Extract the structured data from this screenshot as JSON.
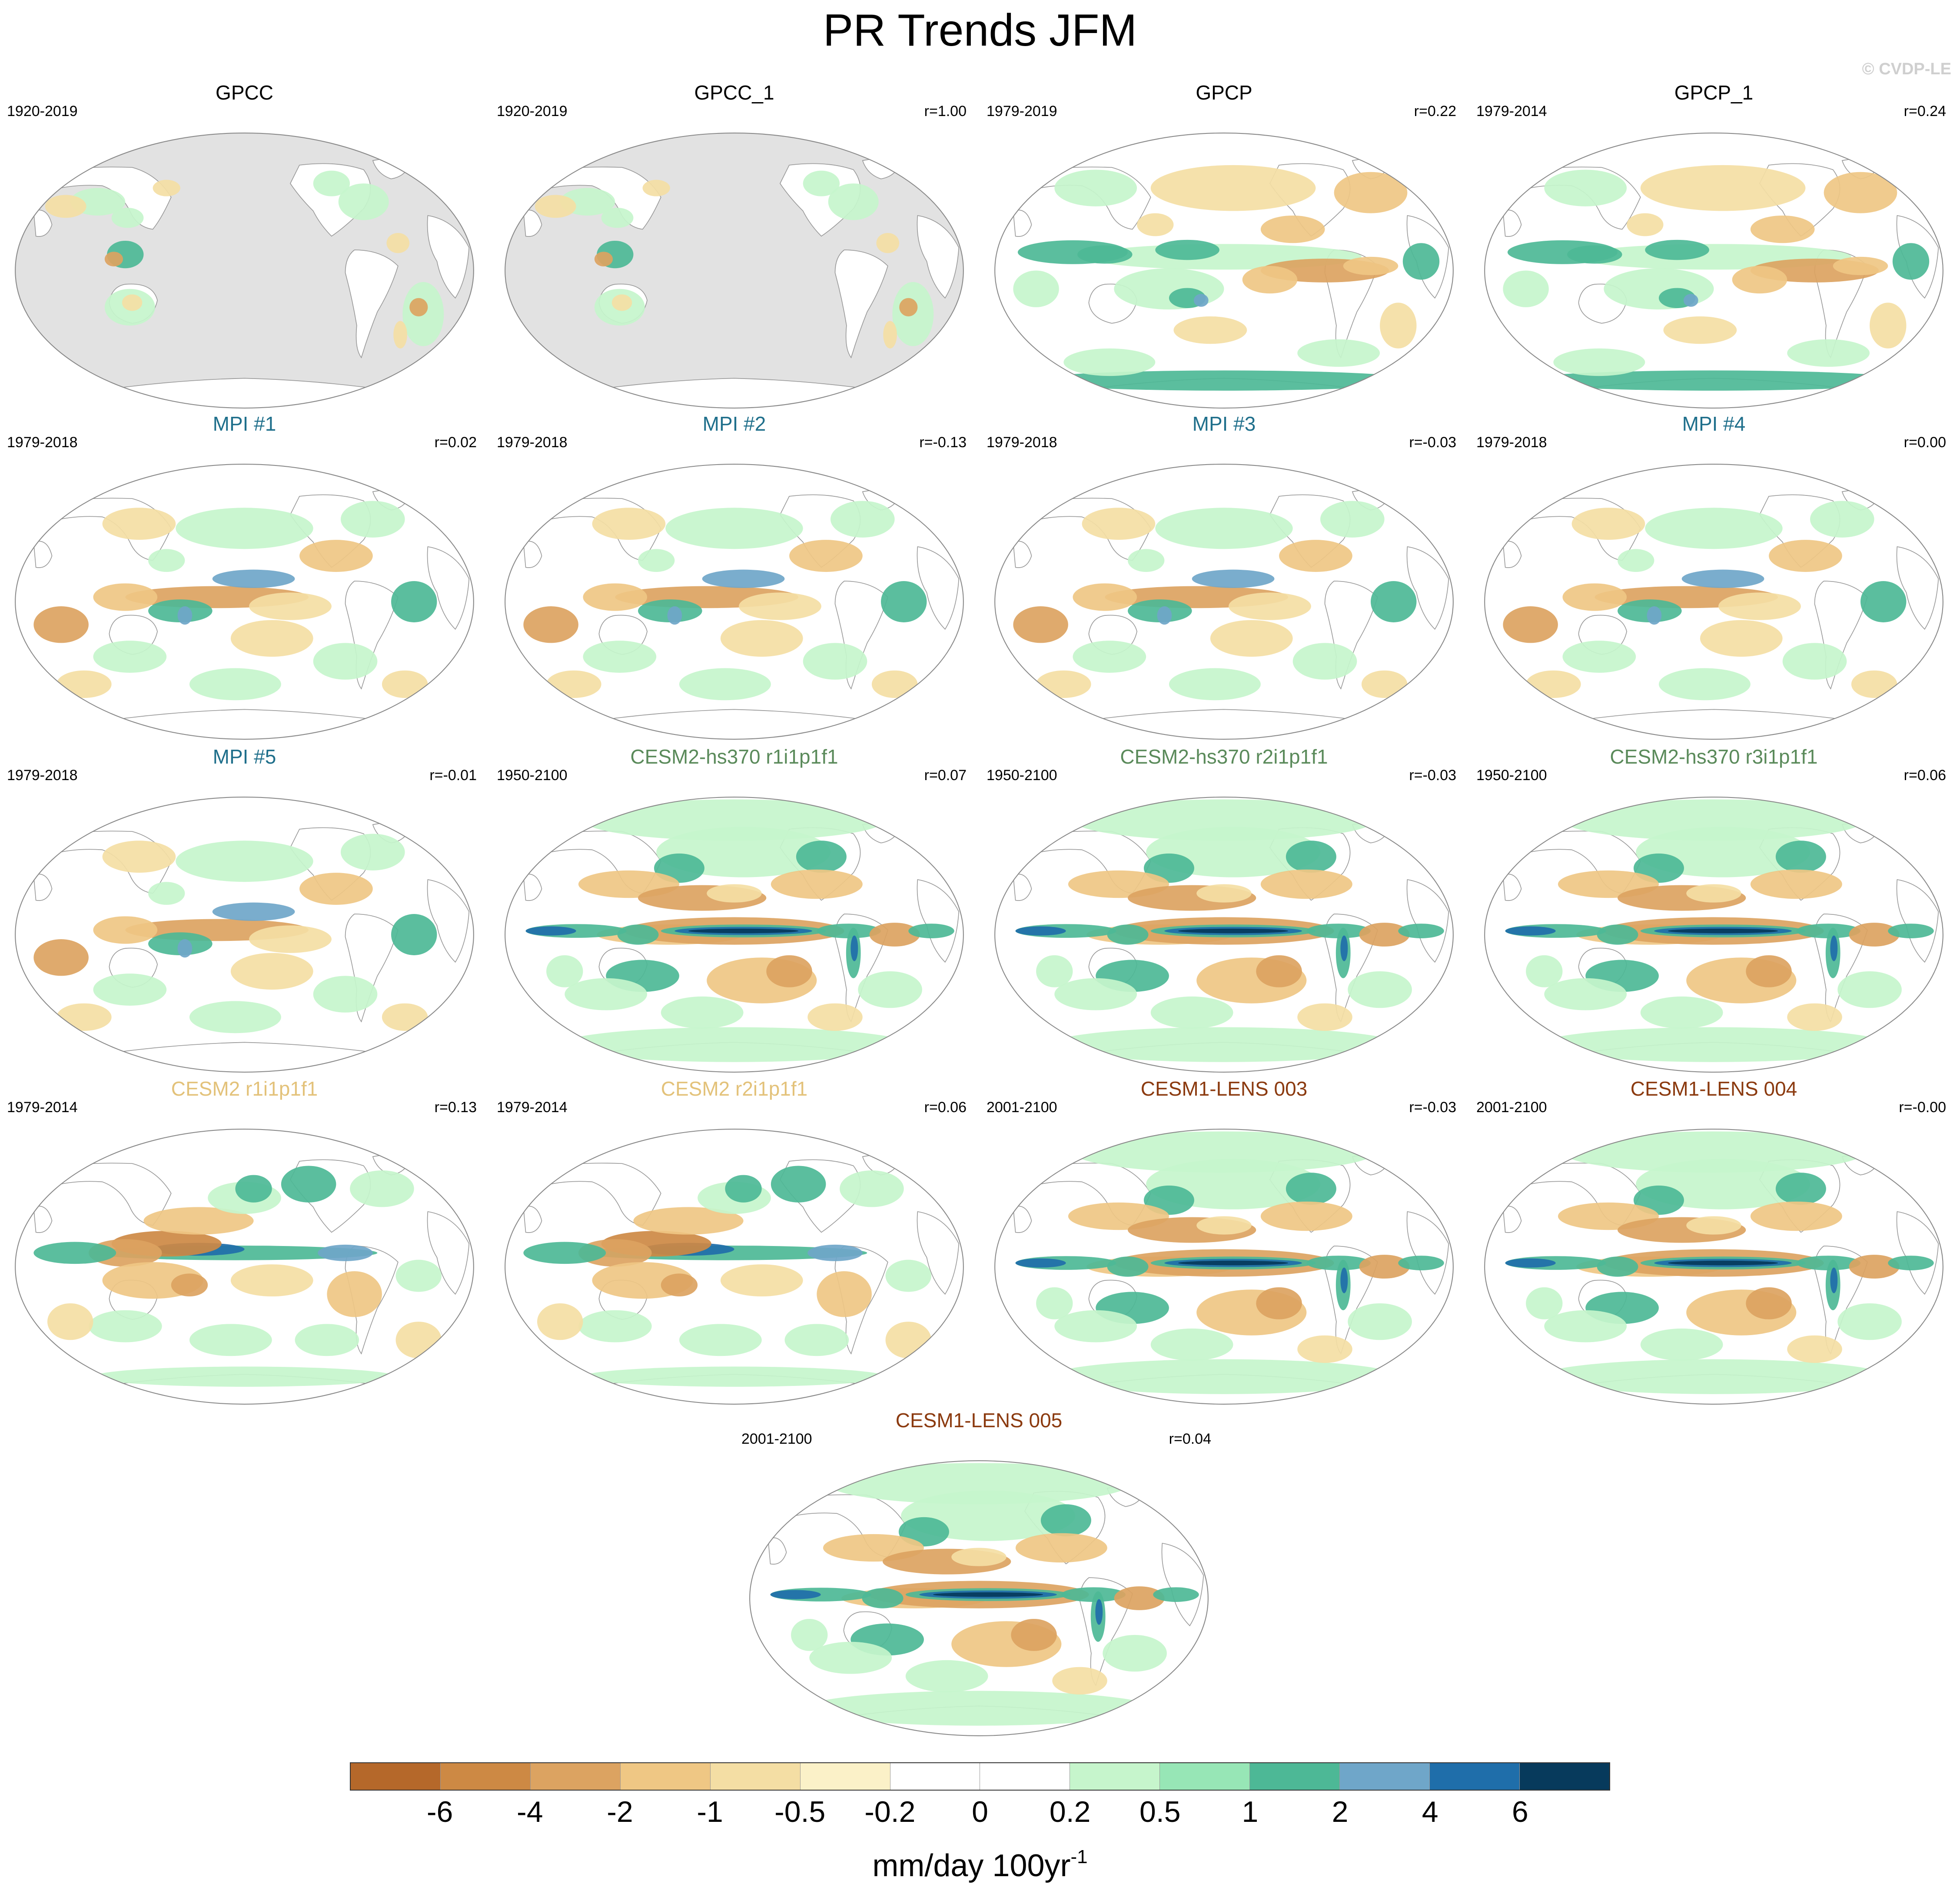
{
  "title": "PR Trends JFM",
  "watermark": "© CVDP-LE",
  "colors": {
    "gpcc_group": "#000000",
    "mpi_group": "#1f6f8b",
    "cesm2_hs370_group": "#5a8a5a",
    "cesm2_group": "#e3c27a",
    "cesm1_group": "#8b3a0f",
    "land_mask": "#e2e2e2",
    "outline": "#9a9a9a"
  },
  "panels": [
    {
      "title": "GPCC",
      "years": "1920-2019",
      "r": "",
      "group": "gpcc_group",
      "pattern": "gpcc"
    },
    {
      "title": "GPCC_1",
      "years": "1920-2019",
      "r": "r=1.00",
      "group": "gpcc_group",
      "pattern": "gpcc"
    },
    {
      "title": "GPCP",
      "years": "1979-2019",
      "r": "r=0.22",
      "group": "gpcc_group",
      "pattern": "obs"
    },
    {
      "title": "GPCP_1",
      "years": "1979-2014",
      "r": "r=0.24",
      "group": "gpcc_group",
      "pattern": "obs"
    },
    {
      "title": "MPI #1",
      "years": "1979-2018",
      "r": "r=0.02",
      "group": "mpi_group",
      "pattern": "mpi"
    },
    {
      "title": "MPI #2",
      "years": "1979-2018",
      "r": "r=-0.13",
      "group": "mpi_group",
      "pattern": "mpi"
    },
    {
      "title": "MPI #3",
      "years": "1979-2018",
      "r": "r=-0.03",
      "group": "mpi_group",
      "pattern": "mpi"
    },
    {
      "title": "MPI #4",
      "years": "1979-2018",
      "r": "r=0.00",
      "group": "mpi_group",
      "pattern": "mpi"
    },
    {
      "title": "MPI #5",
      "years": "1979-2018",
      "r": "r=-0.01",
      "group": "mpi_group",
      "pattern": "mpi"
    },
    {
      "title": "CESM2-hs370 r1i1p1f1",
      "years": "1950-2100",
      "r": "r=0.07",
      "group": "cesm2_hs370_group",
      "pattern": "future"
    },
    {
      "title": "CESM2-hs370 r2i1p1f1",
      "years": "1950-2100",
      "r": "r=-0.03",
      "group": "cesm2_hs370_group",
      "pattern": "future"
    },
    {
      "title": "CESM2-hs370 r3i1p1f1",
      "years": "1950-2100",
      "r": "r=0.06",
      "group": "cesm2_hs370_group",
      "pattern": "future"
    },
    {
      "title": "CESM2 r1i1p1f1",
      "years": "1979-2014",
      "r": "r=0.13",
      "group": "cesm2_group",
      "pattern": "hist"
    },
    {
      "title": "CESM2 r2i1p1f1",
      "years": "1979-2014",
      "r": "r=0.06",
      "group": "cesm2_group",
      "pattern": "hist"
    },
    {
      "title": "CESM1-LENS 003",
      "years": "2001-2100",
      "r": "r=-0.03",
      "group": "cesm1_group",
      "pattern": "future"
    },
    {
      "title": "CESM1-LENS 004",
      "years": "2001-2100",
      "r": "r=-0.00",
      "group": "cesm1_group",
      "pattern": "future"
    },
    {
      "title": "CESM1-LENS 005",
      "years": "2001-2100",
      "r": "r=0.04",
      "group": "cesm1_group",
      "pattern": "future"
    }
  ],
  "colorbar": {
    "units_text": "mm/day 100yr",
    "units_exponent": "-1",
    "labels": [
      "-6",
      "-4",
      "-2",
      "-1",
      "-0.5",
      "-0.2",
      "0",
      "0.2",
      "0.5",
      "1",
      "2",
      "4",
      "6"
    ],
    "colors": [
      "#b5682a",
      "#cd8944",
      "#dca361",
      "#efc784",
      "#f4dea4",
      "#fbf1c8",
      "#ffffff",
      "#ffffff",
      "#c6f5cc",
      "#97e6b6",
      "#4db896",
      "#6fa6c9",
      "#1f6eaa",
      "#073a5c"
    ]
  }
}
